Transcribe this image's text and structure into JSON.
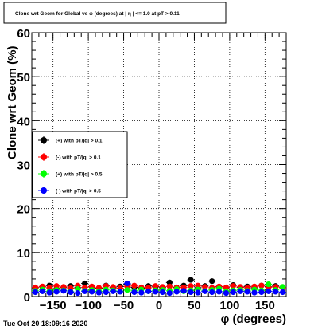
{
  "timestamp": "Tue Oct 20 18:09:16 2020",
  "chart_data": {
    "type": "scatter",
    "title": "Clone wrt Geom for Global vs φ (degrees) at | η | <= 1.0 at pT > 0.11",
    "xlabel": "φ (degrees)",
    "ylabel": "Clone wrt Geom (%)",
    "xlim": [
      -180,
      180
    ],
    "ylim": [
      0,
      60
    ],
    "xticks": [
      -150,
      -100,
      -50,
      0,
      50,
      100,
      150
    ],
    "xtick_labels": [
      "−150",
      "−100",
      "−50",
      "0",
      "50",
      "100",
      "150"
    ],
    "yticks": [
      0,
      10,
      20,
      30,
      40,
      50,
      60
    ],
    "ytick_labels": [
      "0",
      "10",
      "20",
      "30",
      "40",
      "50",
      "60"
    ],
    "grid": true,
    "legend_position": "left-middle",
    "series": [
      {
        "name": "(+) with pT/|q| > 0.1",
        "color": "#000000",
        "x": [
          -175,
          -165,
          -155,
          -145,
          -135,
          -125,
          -115,
          -105,
          -95,
          -85,
          -75,
          -65,
          -55,
          -45,
          -35,
          -25,
          -15,
          -5,
          5,
          15,
          25,
          35,
          45,
          55,
          65,
          75,
          85,
          95,
          105,
          115,
          125,
          135,
          145,
          155,
          165,
          175
        ],
        "y": [
          2.0,
          2.2,
          2.5,
          1.8,
          2.1,
          2.4,
          2.0,
          3.0,
          2.2,
          1.9,
          2.5,
          2.0,
          2.3,
          2.8,
          2.1,
          1.9,
          2.4,
          2.2,
          2.0,
          3.2,
          2.1,
          2.5,
          3.8,
          2.0,
          2.4,
          3.5,
          2.2,
          2.0,
          2.6,
          2.1,
          2.3,
          2.0,
          2.5,
          2.2,
          2.4,
          2.1
        ]
      },
      {
        "name": "(-) with pT/|q| > 0.1",
        "color": "#ff0000",
        "x": [
          -175,
          -165,
          -155,
          -145,
          -135,
          -125,
          -115,
          -105,
          -95,
          -85,
          -75,
          -65,
          -55,
          -45,
          -35,
          -25,
          -15,
          -5,
          5,
          15,
          25,
          35,
          45,
          55,
          65,
          75,
          85,
          95,
          105,
          115,
          125,
          135,
          145,
          155,
          165,
          175
        ],
        "y": [
          2.1,
          2.3,
          2.0,
          2.4,
          2.2,
          1.9,
          2.5,
          2.1,
          2.3,
          2.0,
          2.4,
          2.2,
          1.9,
          2.3,
          2.5,
          2.1,
          2.0,
          2.4,
          2.2,
          2.3,
          2.0,
          2.1,
          2.4,
          2.5,
          2.2,
          2.0,
          2.3,
          2.1,
          2.4,
          2.2,
          2.0,
          2.3,
          2.5,
          2.1,
          2.2,
          2.0
        ]
      },
      {
        "name": "(+) with pT/|q| > 0.5",
        "color": "#00ff00",
        "x": [
          -175,
          -165,
          -155,
          -145,
          -135,
          -125,
          -115,
          -105,
          -95,
          -85,
          -75,
          -65,
          -55,
          -45,
          -35,
          -25,
          -15,
          -5,
          5,
          15,
          25,
          35,
          45,
          55,
          65,
          75,
          85,
          95,
          105,
          115,
          125,
          135,
          145,
          155,
          165,
          175
        ],
        "y": [
          1.3,
          1.6,
          1.2,
          1.5,
          1.4,
          1.1,
          1.7,
          1.3,
          1.5,
          1.2,
          1.6,
          1.4,
          1.2,
          1.5,
          1.3,
          1.6,
          1.2,
          1.4,
          1.5,
          1.3,
          1.7,
          1.2,
          1.4,
          1.6,
          1.3,
          1.5,
          1.8,
          1.2,
          1.4,
          1.5,
          1.3,
          1.6,
          1.4,
          2.8,
          1.5,
          2.2
        ]
      },
      {
        "name": "(-) with pT/|q| > 0.5",
        "color": "#0000ff",
        "x": [
          -175,
          -165,
          -155,
          -145,
          -135,
          -125,
          -115,
          -105,
          -95,
          -85,
          -75,
          -65,
          -55,
          -45,
          -35,
          -25,
          -15,
          -5,
          5,
          15,
          25,
          35,
          45,
          55,
          65,
          75,
          85,
          95,
          105,
          115,
          125,
          135,
          145,
          155,
          165,
          175
        ],
        "y": [
          1.0,
          1.2,
          0.9,
          1.1,
          1.3,
          1.0,
          0.8,
          1.2,
          1.1,
          0.9,
          1.0,
          1.2,
          1.1,
          3.0,
          1.0,
          0.9,
          1.2,
          1.1,
          1.0,
          0.8,
          1.1,
          1.3,
          1.0,
          0.9,
          1.2,
          1.0,
          1.1,
          0.8,
          1.0,
          1.2,
          1.1,
          0.9,
          1.0,
          1.2,
          1.1,
          1.0
        ]
      }
    ]
  }
}
